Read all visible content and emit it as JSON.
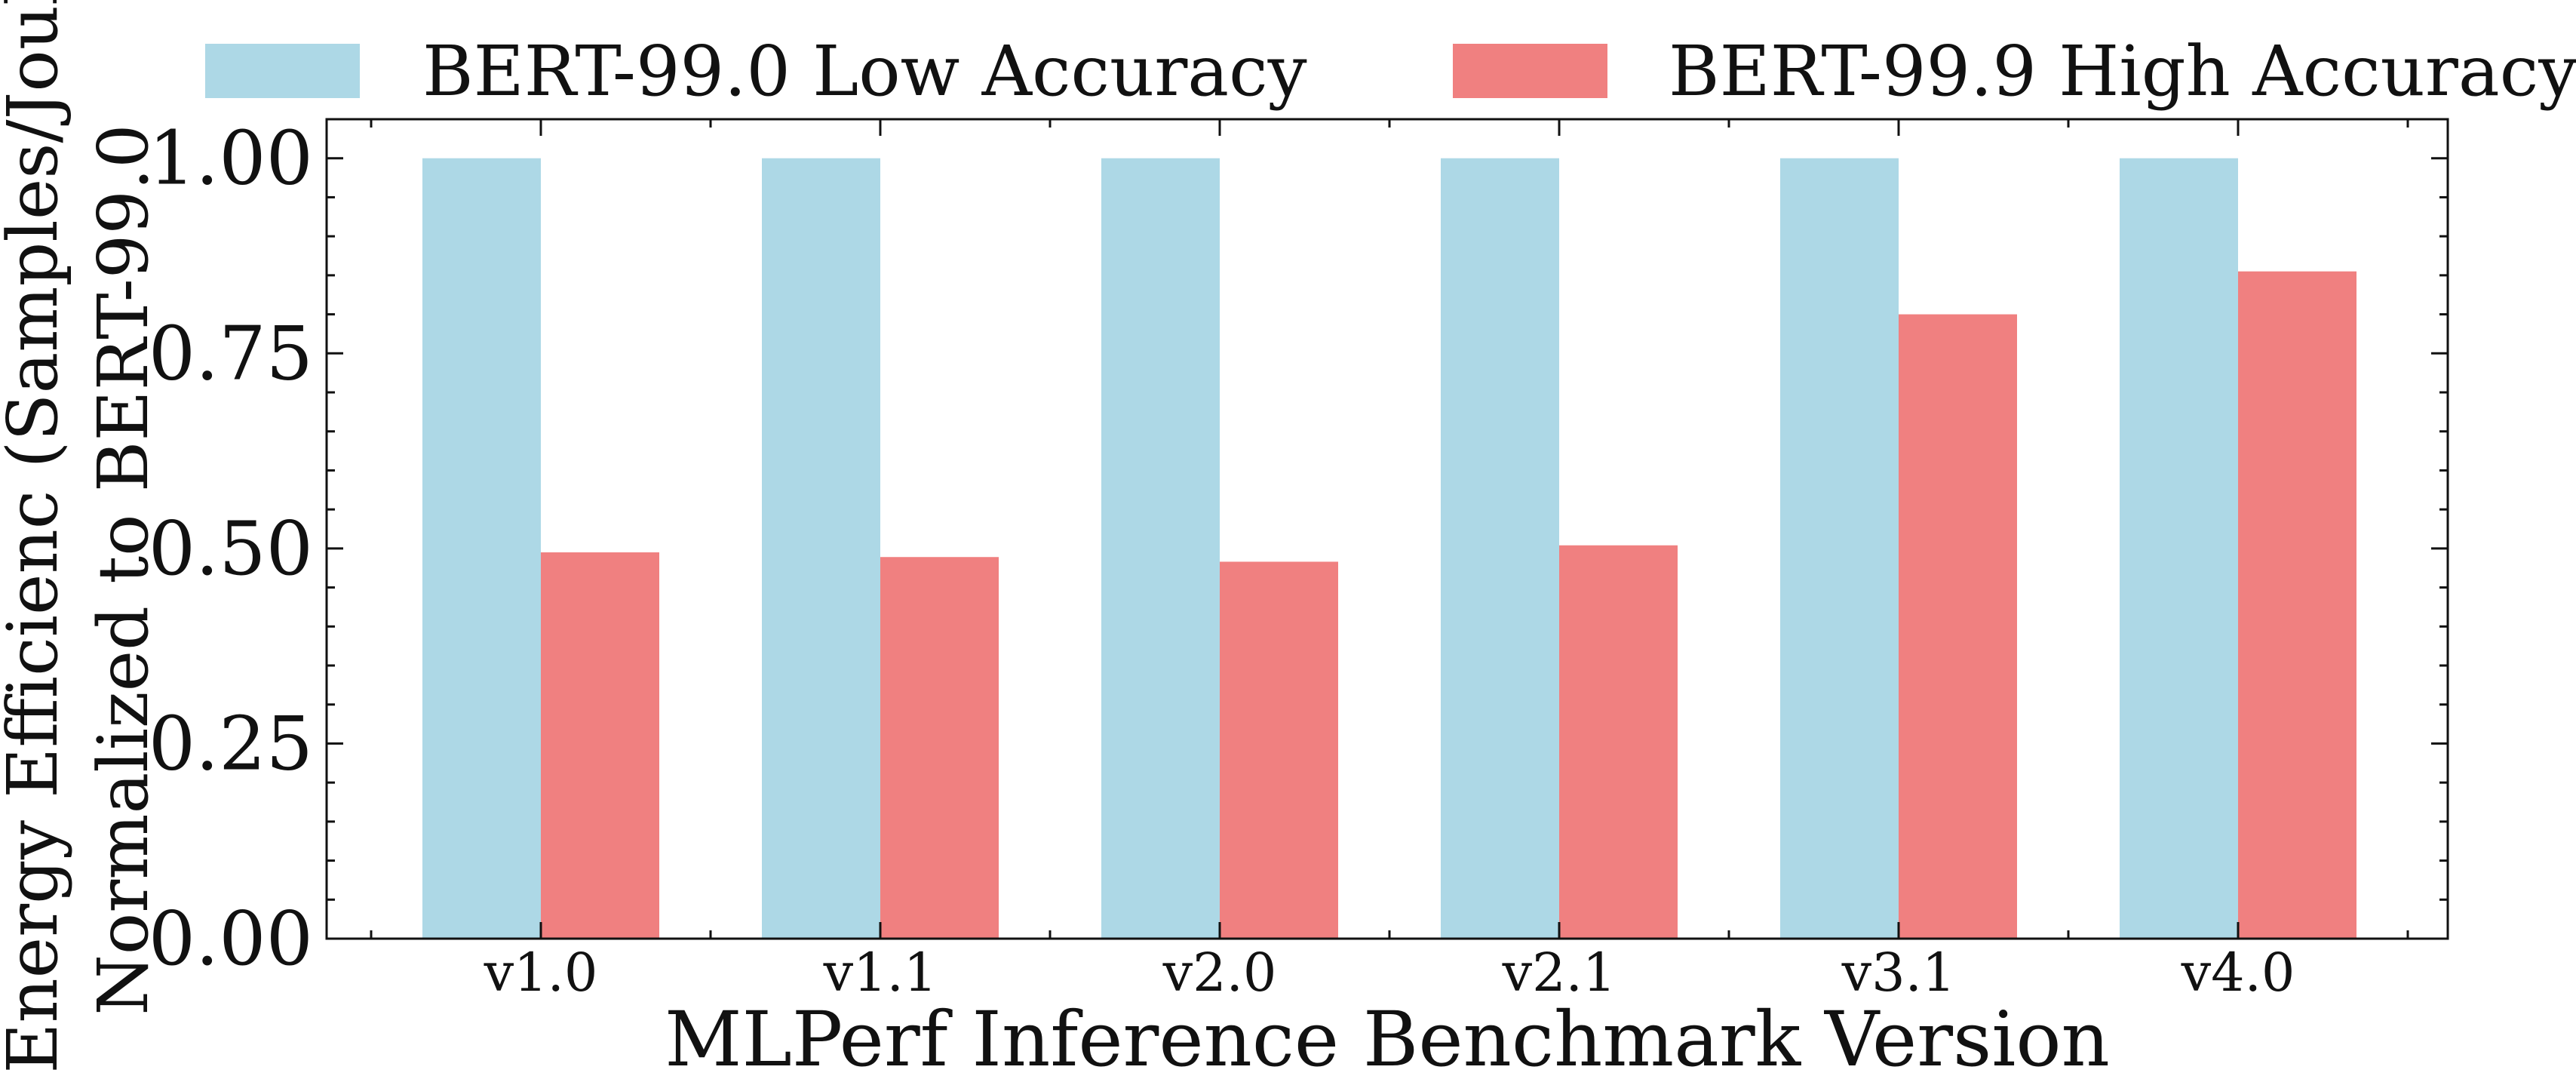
{
  "chart_data": {
    "type": "bar",
    "xlabel": "MLPerf Inference Benchmark Version",
    "ylabel_lines": [
      "Energy Efficienc (Samples/Joule)",
      "Normalized to BERT-99.0"
    ],
    "categories": [
      "v1.0",
      "v1.1",
      "v2.0",
      "v2.1",
      "v3.1",
      "v4.0"
    ],
    "series": [
      {
        "name": "BERT-99.0 Low Accuracy",
        "color": "#add8e6",
        "values": [
          1.0,
          1.0,
          1.0,
          1.0,
          1.0,
          1.0
        ]
      },
      {
        "name": "BERT-99.9 High Accuracy",
        "color": "#f08080",
        "values": [
          0.495,
          0.489,
          0.483,
          0.504,
          0.8,
          0.855
        ]
      }
    ],
    "ylim": [
      0,
      1.05
    ],
    "yticks": [
      "0.00",
      "0.25",
      "0.50",
      "0.75",
      "1.00"
    ],
    "grid": false,
    "legend_position": "top"
  }
}
